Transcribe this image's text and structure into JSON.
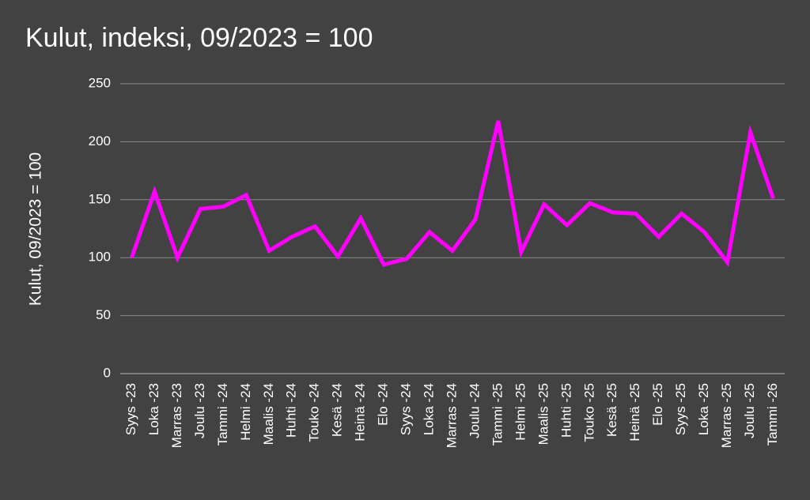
{
  "chart_data": {
    "type": "line",
    "title": "Kulut, indeksi, 09/2023 = 100",
    "y_label": "Kulut, 09/2023 = 100",
    "categories": [
      "Syys -23",
      "Loka -23",
      "Marras -23",
      "Joulu -23",
      "Tammi -24",
      "Helmi -24",
      "Maalis -24",
      "Huhti -24",
      "Touko -24",
      "Kesä -24",
      "Heinä -24",
      "Elo -24",
      "Syys -24",
      "Loka -24",
      "Marras -24",
      "Joulu -24",
      "Tammi -25",
      "Helmi -25",
      "Maalis -25",
      "Huhti -25",
      "Touko -25",
      "Kesä -25",
      "Heinä -25",
      "Elo -25",
      "Syys -25",
      "Loka -25",
      "Marras -25",
      "Joulu -25",
      "Tammi -26"
    ],
    "values": [
      100,
      157,
      100,
      142,
      144,
      154,
      106,
      118,
      127,
      101,
      134,
      94,
      99,
      122,
      106,
      133,
      218,
      105,
      146,
      128,
      147,
      139,
      138,
      118,
      138,
      122,
      96,
      208,
      151
    ],
    "color": "#ff00ff",
    "ylim": [
      0,
      250
    ],
    "yticks": [
      0,
      50,
      100,
      150,
      200,
      250
    ],
    "grid": true
  }
}
